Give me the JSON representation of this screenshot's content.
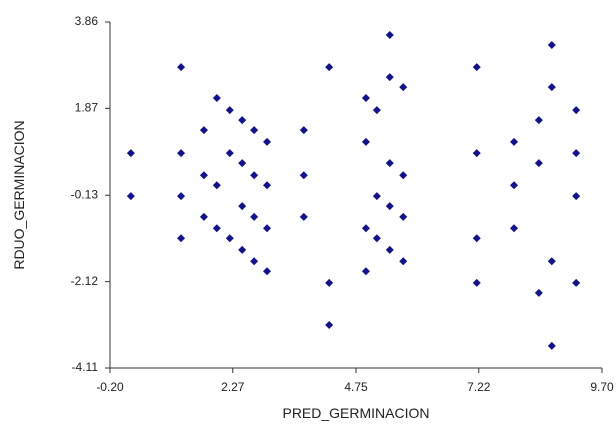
{
  "chart_data": {
    "type": "scatter",
    "x_label": "PRED_GERMINACION",
    "y_label": "RDUO_GERMINACION",
    "color": "#10109a",
    "xlim": [
      -0.2,
      9.7
    ],
    "ylim": [
      -4.11,
      3.86
    ],
    "xticks": [
      {
        "value": -0.2,
        "label": "-0.20"
      },
      2.27,
      4.75,
      7.22,
      {
        "value": 9.7,
        "label": "9.70"
      }
    ],
    "yticks": [
      -4.11,
      -2.12,
      -0.13,
      1.87,
      3.86
    ],
    "x": [
      0.22,
      0.22,
      1.23,
      1.23,
      1.23,
      1.23,
      1.69,
      1.69,
      1.69,
      1.95,
      1.95,
      1.95,
      2.21,
      2.21,
      2.21,
      2.46,
      2.46,
      2.46,
      2.46,
      2.7,
      2.7,
      2.7,
      2.7,
      2.96,
      2.96,
      2.96,
      2.96,
      3.7,
      3.7,
      3.7,
      4.21,
      4.21,
      4.21,
      4.95,
      4.95,
      4.95,
      4.95,
      5.17,
      5.17,
      5.17,
      5.43,
      5.43,
      5.43,
      5.43,
      5.43,
      5.7,
      5.7,
      5.7,
      5.7,
      7.18,
      7.18,
      7.18,
      7.18,
      7.93,
      7.93,
      7.93,
      8.43,
      8.43,
      8.43,
      8.69,
      8.69,
      8.69,
      8.69,
      9.18,
      9.18,
      9.18,
      9.18
    ],
    "values": [
      0.84,
      -0.15,
      2.82,
      0.84,
      -0.15,
      -1.12,
      1.37,
      0.33,
      -0.63,
      2.11,
      0.1,
      -0.89,
      1.83,
      0.84,
      -1.12,
      1.6,
      0.61,
      -0.38,
      -1.39,
      1.37,
      0.33,
      -0.63,
      -1.65,
      1.1,
      0.1,
      -0.89,
      -1.88,
      1.37,
      0.33,
      -0.63,
      2.82,
      -2.15,
      -3.12,
      2.11,
      1.1,
      -0.89,
      -1.88,
      1.83,
      -0.15,
      -1.12,
      3.56,
      2.59,
      0.61,
      -0.38,
      -1.39,
      2.36,
      0.33,
      -0.63,
      -1.65,
      2.82,
      0.84,
      -1.12,
      -2.15,
      1.1,
      0.1,
      -0.89,
      1.6,
      0.61,
      -2.38,
      3.33,
      2.36,
      -1.65,
      -3.6,
      1.83,
      0.84,
      -0.15,
      -2.15
    ]
  }
}
